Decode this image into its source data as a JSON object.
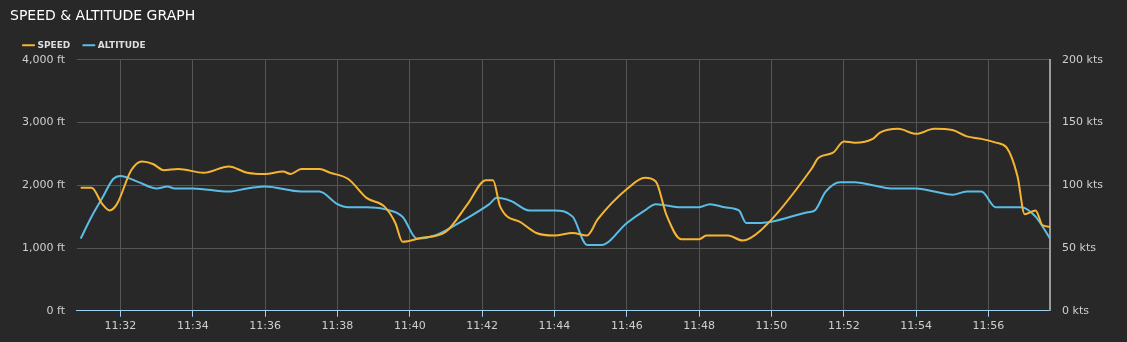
{
  "chart_data": {
    "type": "line",
    "title": "SPEED & ALTITUDE GRAPH",
    "legend": "top left",
    "grid": true,
    "marker": "none",
    "line_style": "solid",
    "xlim": [
      11.5133,
      11.9617
    ],
    "xticks": [
      {
        "value": 11.5333,
        "label": "11:32"
      },
      {
        "value": 11.5667,
        "label": "11:34"
      },
      {
        "value": 11.6,
        "label": "11:36"
      },
      {
        "value": 11.6333,
        "label": "11:38"
      },
      {
        "value": 11.6667,
        "label": "11:40"
      },
      {
        "value": 11.7,
        "label": "11:42"
      },
      {
        "value": 11.7333,
        "label": "11:44"
      },
      {
        "value": 11.7667,
        "label": "11:46"
      },
      {
        "value": 11.8,
        "label": "11:48"
      },
      {
        "value": 11.8333,
        "label": "11:50"
      },
      {
        "value": 11.8667,
        "label": "11:52"
      },
      {
        "value": 11.9,
        "label": "11:54"
      },
      {
        "value": 11.9333,
        "label": "11:56"
      }
    ],
    "ylim": [
      0,
      4000
    ],
    "yticks": [
      {
        "value": 0,
        "label": "0 ft"
      },
      {
        "value": 1000,
        "label": "1,000 ft"
      },
      {
        "value": 2000,
        "label": "2,000 ft"
      },
      {
        "value": 3000,
        "label": "3,000 ft"
      },
      {
        "value": 4000,
        "label": "4,000 ft"
      }
    ],
    "y2lim": [
      0,
      200
    ],
    "y2ticks": [
      {
        "value": 0,
        "label": "0 kts"
      },
      {
        "value": 50,
        "label": "50 kts"
      },
      {
        "value": 100,
        "label": "100 kts"
      },
      {
        "value": 150,
        "label": "150 kts"
      },
      {
        "value": 200,
        "label": "200 kts"
      }
    ],
    "series": [
      {
        "name": "SPEED",
        "color": "#f5b533",
        "axis": "y2",
        "x": [
          11.515,
          11.52,
          11.525,
          11.5283,
          11.5317,
          11.5383,
          11.5433,
          11.5483,
          11.5533,
          11.56,
          11.5717,
          11.5833,
          11.5917,
          11.6,
          11.6083,
          11.6117,
          11.6167,
          11.625,
          11.63,
          11.6383,
          11.6467,
          11.655,
          11.66,
          11.6633,
          11.6717,
          11.6833,
          11.6933,
          11.7017,
          11.705,
          11.7083,
          11.7183,
          11.725,
          11.7333,
          11.7417,
          11.7483,
          11.7533,
          11.7667,
          11.775,
          11.78,
          11.785,
          11.7917,
          11.8,
          11.8033,
          11.8133,
          11.82,
          11.8283,
          11.8517,
          11.855,
          11.8617,
          11.8667,
          11.8717,
          11.88,
          11.8833,
          11.8917,
          11.9,
          11.9083,
          11.9167,
          11.9233,
          11.93,
          11.9367,
          11.9417,
          11.9467,
          11.95,
          11.955,
          11.9583,
          11.9617
        ],
        "values": [
          98,
          98,
          85,
          80,
          85,
          112,
          119,
          117,
          112,
          113,
          110,
          115,
          110,
          109,
          111,
          109,
          113,
          113,
          110,
          105,
          90,
          83,
          70,
          55,
          58,
          63,
          85,
          104,
          104,
          83,
          70,
          62,
          60,
          62,
          60,
          73,
          97,
          106,
          103,
          76,
          57,
          57,
          60,
          60,
          56,
          64,
          113,
          122,
          126,
          135,
          134,
          137,
          142,
          145,
          141,
          145,
          144,
          139,
          137,
          134,
          130,
          107,
          77,
          80,
          68,
          67
        ]
      },
      {
        "name": "ALTITUDE",
        "color": "#5bbde6",
        "x": [
          11.515,
          11.52,
          11.525,
          11.53,
          11.5333,
          11.5417,
          11.55,
          11.555,
          11.5583,
          11.5667,
          11.5833,
          11.5917,
          11.6,
          11.6167,
          11.625,
          11.6333,
          11.6383,
          11.6467,
          11.655,
          11.6633,
          11.67,
          11.6783,
          11.6917,
          11.7033,
          11.7067,
          11.7133,
          11.7217,
          11.7333,
          11.7417,
          11.7483,
          11.755,
          11.7667,
          11.775,
          11.78,
          11.7917,
          11.8,
          11.805,
          11.8117,
          11.8183,
          11.8217,
          11.8267,
          11.8333,
          11.85,
          11.8533,
          11.8583,
          11.865,
          11.8717,
          11.88,
          11.8883,
          11.9,
          11.9083,
          11.9167,
          11.9233,
          11.93,
          11.9367,
          11.9417,
          11.9483,
          11.955,
          11.9617
        ],
        "values": [
          1150,
          1500,
          1800,
          2100,
          2150,
          2050,
          1950,
          1980,
          1950,
          1950,
          1900,
          1950,
          1980,
          1900,
          1900,
          1700,
          1650,
          1650,
          1620,
          1500,
          1150,
          1200,
          1450,
          1700,
          1800,
          1750,
          1600,
          1600,
          1500,
          1050,
          1050,
          1400,
          1600,
          1700,
          1650,
          1650,
          1700,
          1650,
          1600,
          1400,
          1400,
          1420,
          1570,
          1600,
          1900,
          2050,
          2050,
          2000,
          1950,
          1950,
          1900,
          1850,
          1900,
          1900,
          1650,
          1650,
          1650,
          1500,
          1150
        ]
      }
    ]
  }
}
